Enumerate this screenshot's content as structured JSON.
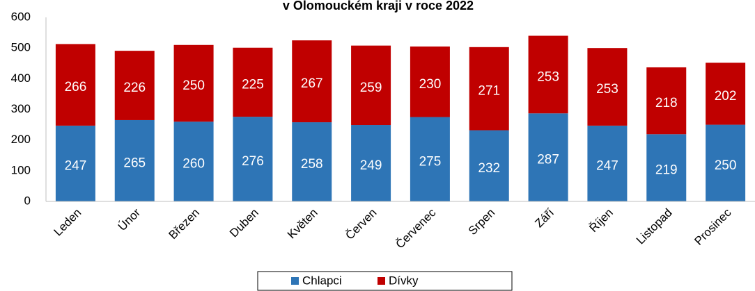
{
  "chart_data": {
    "type": "stacked_bar",
    "title": "v Olomouckém kraji v roce 2022",
    "categories": [
      "Leden",
      "Únor",
      "Březen",
      "Duben",
      "Květen",
      "Červen",
      "Červenec",
      "Srpen",
      "Září",
      "Říjen",
      "Listopad",
      "Prosinec"
    ],
    "series": [
      {
        "name": "Chlapci",
        "color": "#2e75b6",
        "values": [
          247,
          265,
          260,
          276,
          258,
          249,
          275,
          232,
          287,
          247,
          219,
          250
        ]
      },
      {
        "name": "Dívky",
        "color": "#c00000",
        "values": [
          266,
          226,
          250,
          225,
          267,
          259,
          230,
          271,
          253,
          253,
          218,
          202
        ]
      }
    ],
    "ylim": [
      0,
      600
    ],
    "yticks": [
      0,
      100,
      200,
      300,
      400,
      500,
      600
    ],
    "grid": false,
    "legend": "bottom"
  }
}
